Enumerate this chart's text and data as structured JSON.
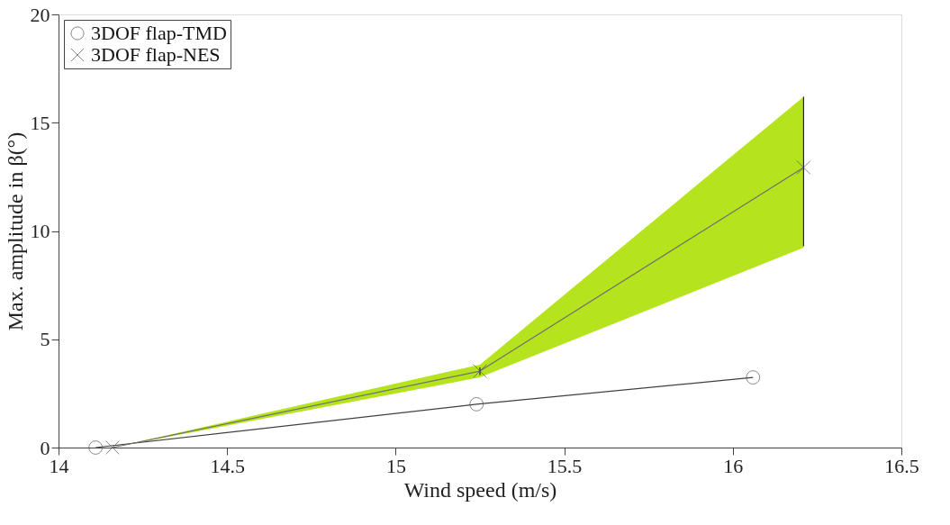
{
  "chart_data": {
    "type": "line",
    "xlabel": "Wind speed (m/s)",
    "ylabel": "Max. amplitude in β(°)",
    "xlim": [
      14,
      16.5
    ],
    "xticks": [
      14,
      14.5,
      15,
      15.5,
      16,
      16.5
    ],
    "ylim": [
      0,
      20
    ],
    "yticks": [
      0,
      5,
      10,
      15,
      20
    ],
    "grid": false,
    "legend": "top left",
    "series": [
      {
        "name": "3DOF flap-TMD",
        "color": "#404040",
        "marker": "circle",
        "x": [
          14.11,
          15.24,
          16.06
        ],
        "values": [
          0,
          2.0,
          3.24
        ]
      },
      {
        "name": "3DOF flap-NES",
        "color": "#707070",
        "marker": "cross",
        "x": [
          14.16,
          15.25,
          16.21
        ],
        "values": [
          0,
          3.53,
          12.93
        ],
        "errors": [
          null,
          [
            3.35,
            3.7
          ],
          [
            9.3,
            16.2
          ]
        ],
        "lower": [
          0,
          3.24,
          9.23
        ],
        "upper": [
          0,
          3.83,
          16.2
        ]
      }
    ]
  }
}
